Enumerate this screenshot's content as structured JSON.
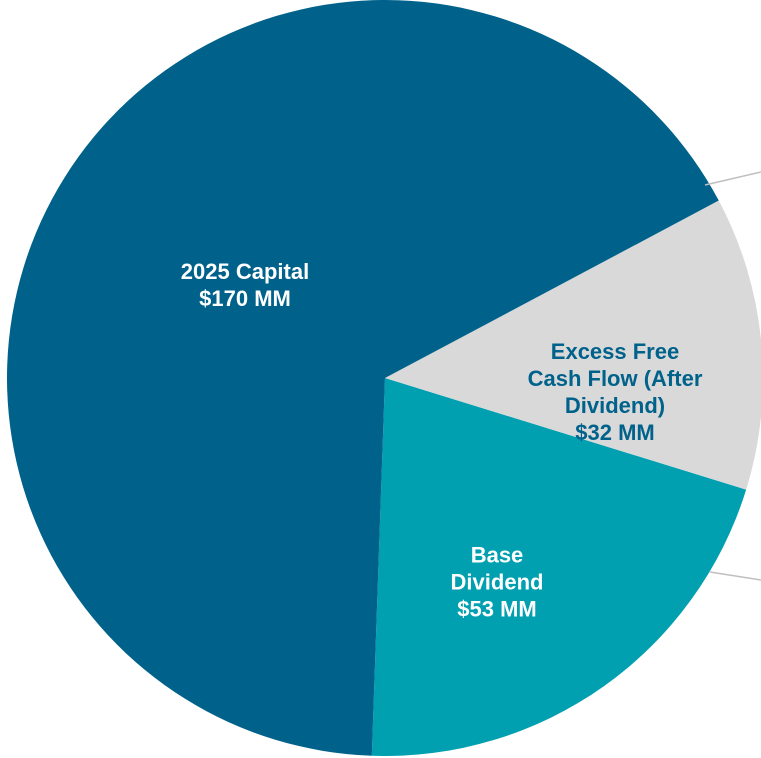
{
  "chart_data": {
    "type": "pie",
    "categories": [
      "2025 Capital",
      "Excess Free Cash Flow (After Dividend)",
      "Base Dividend"
    ],
    "values": [
      170,
      32,
      53
    ],
    "value_labels": [
      "$170 MM",
      "$32 MM",
      "$53 MM"
    ],
    "colors": [
      "#00628b",
      "#d9d9d9",
      "#00a0b0"
    ]
  }
}
